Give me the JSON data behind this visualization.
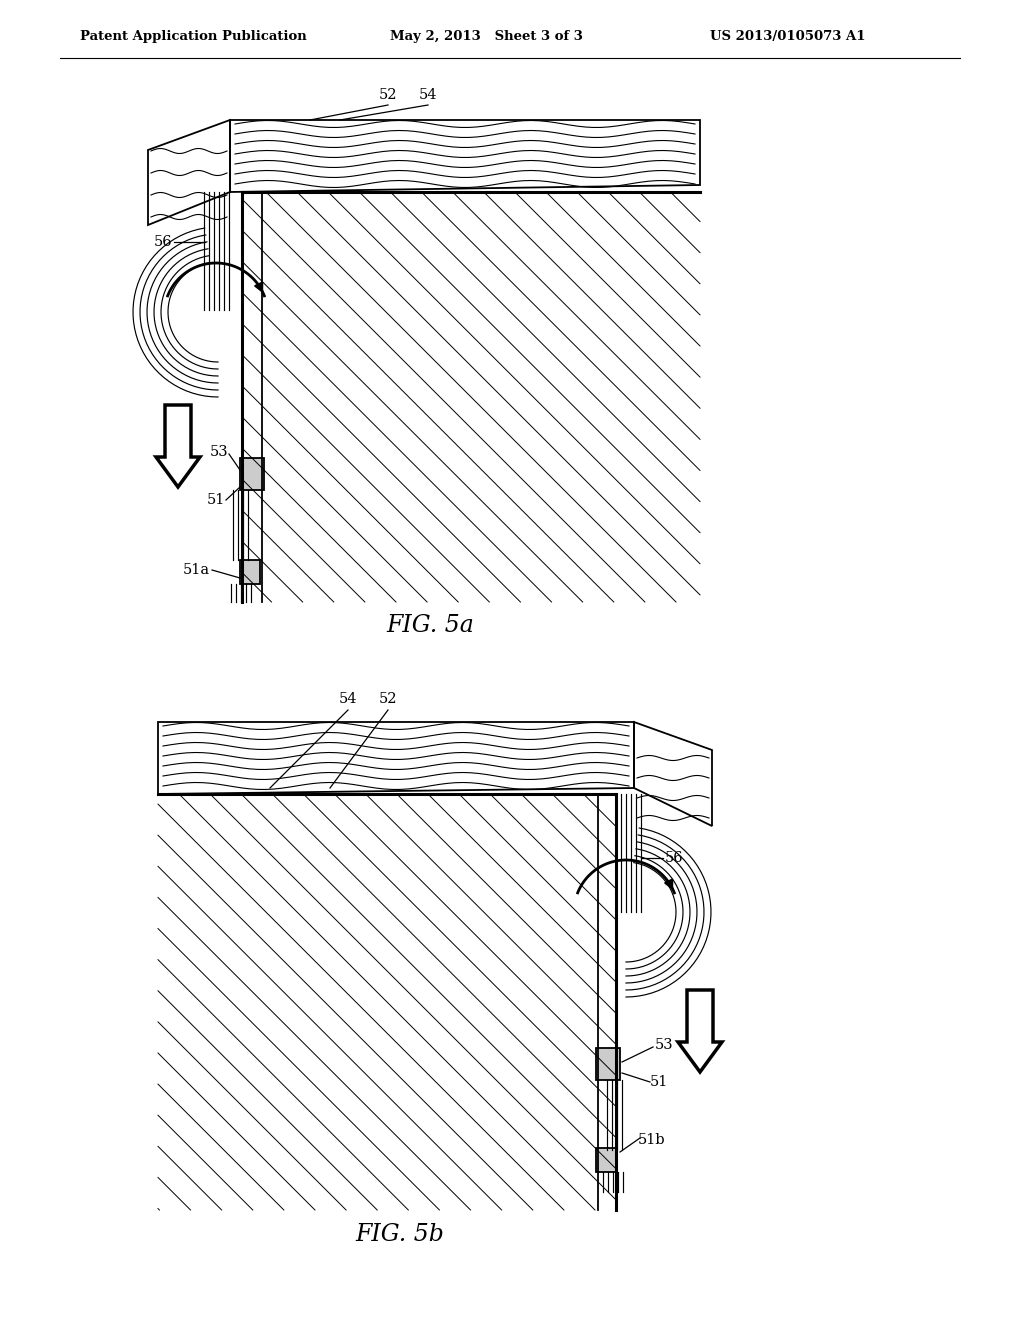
{
  "bg_color": "#ffffff",
  "line_color": "#000000",
  "header_text": "Patent Application Publication",
  "header_date": "May 2, 2013   Sheet 3 of 3",
  "header_patent": "US 2013/0105073 A1",
  "fig5a_label": "FIG. 5a",
  "fig5b_label": "FIG. 5b"
}
